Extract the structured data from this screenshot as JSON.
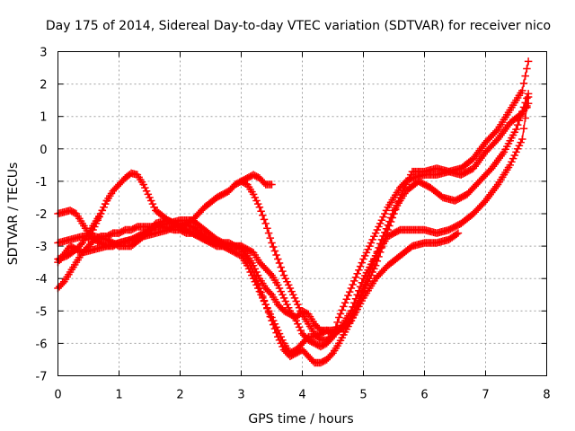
{
  "chart_data": {
    "type": "line",
    "title": "Day 175 of 2014, Sidereal Day-to-day VTEC variation (SDTVAR) for receiver nico",
    "xlabel": "GPS time / hours",
    "ylabel": "SDTVAR / TECUs",
    "xlim": [
      0,
      8
    ],
    "ylim": [
      -7,
      3
    ],
    "xticks": [
      "0",
      "1",
      "2",
      "3",
      "4",
      "5",
      "6",
      "7",
      "8"
    ],
    "yticks": [
      "-7",
      "-6",
      "-5",
      "-4",
      "-3",
      "-2",
      "-1",
      "0",
      "1",
      "2",
      "3"
    ],
    "grid": true,
    "marker": "+",
    "color": "#ff0000",
    "series": [
      {
        "x": [
          0.0,
          0.1,
          0.2,
          0.3,
          0.4,
          0.5,
          0.6,
          0.7,
          0.8,
          0.9,
          1.0,
          1.1,
          1.2,
          1.3,
          1.5,
          1.7,
          1.9,
          2.0,
          2.1,
          2.2,
          2.4,
          2.6,
          2.8,
          3.0,
          3.2,
          3.3,
          3.4,
          3.5,
          3.6,
          3.7,
          3.8,
          3.9,
          4.0,
          4.1,
          4.2,
          4.3,
          4.4,
          4.5,
          4.6,
          4.8,
          5.0,
          5.2,
          5.4,
          5.6,
          5.7,
          5.8,
          6.0,
          6.2,
          6.4,
          6.6,
          6.8,
          7.0,
          7.2,
          7.4,
          7.6,
          7.7
        ],
        "y": [
          -4.3,
          -4.1,
          -3.8,
          -3.5,
          -3.2,
          -3.0,
          -2.8,
          -2.7,
          -2.7,
          -2.6,
          -2.6,
          -2.5,
          -2.5,
          -2.4,
          -2.4,
          -2.4,
          -2.5,
          -2.5,
          -2.6,
          -2.6,
          -2.8,
          -3.0,
          -3.0,
          -3.0,
          -3.2,
          -3.5,
          -3.7,
          -3.9,
          -4.2,
          -4.6,
          -5.0,
          -5.3,
          -5.7,
          -5.9,
          -6.0,
          -6.1,
          -6.0,
          -5.8,
          -5.2,
          -4.3,
          -3.4,
          -2.6,
          -1.8,
          -1.2,
          -1.0,
          -0.9,
          -0.8,
          -0.8,
          -0.7,
          -0.6,
          -0.3,
          0.2,
          0.6,
          1.2,
          1.8,
          2.7
        ]
      },
      {
        "x": [
          0.0,
          0.1,
          0.2,
          0.3,
          0.4,
          0.5,
          0.6,
          0.7,
          0.8,
          0.9,
          1.0,
          1.2,
          1.4,
          1.6,
          1.8,
          2.0,
          2.2,
          2.4,
          2.6,
          2.8,
          3.0,
          3.1,
          3.2,
          3.3,
          3.4,
          3.5,
          3.6,
          3.7,
          3.8,
          3.9,
          4.0,
          4.1,
          4.2,
          4.3,
          4.4,
          4.5,
          4.7,
          4.9,
          5.1,
          5.3,
          5.5,
          5.7,
          5.9,
          6.1,
          6.3,
          6.5,
          6.7,
          6.9,
          7.1,
          7.3,
          7.5,
          7.7
        ],
        "y": [
          -2.0,
          -1.95,
          -1.9,
          -2.0,
          -2.3,
          -2.6,
          -2.8,
          -2.9,
          -3.0,
          -3.0,
          -2.9,
          -2.8,
          -2.7,
          -2.6,
          -2.5,
          -2.3,
          -2.4,
          -2.7,
          -2.9,
          -3.1,
          -3.3,
          -3.6,
          -4.0,
          -4.4,
          -4.8,
          -5.2,
          -5.6,
          -6.0,
          -6.3,
          -6.2,
          -6.0,
          -5.8,
          -5.8,
          -5.7,
          -5.6,
          -5.6,
          -5.5,
          -4.8,
          -3.8,
          -2.8,
          -1.9,
          -1.3,
          -1.0,
          -1.2,
          -1.5,
          -1.6,
          -1.4,
          -1.0,
          -0.6,
          -0.1,
          0.6,
          1.7
        ]
      },
      {
        "x": [
          0.0,
          0.15,
          0.3,
          0.4,
          0.5,
          0.6,
          0.7,
          0.8,
          0.9,
          1.0,
          1.1,
          1.2,
          1.3,
          1.4,
          1.5,
          1.6,
          1.8,
          2.0,
          2.2,
          2.4,
          2.6,
          2.8,
          2.9,
          3.0,
          3.1,
          3.2,
          3.3,
          3.4,
          3.5,
          3.6,
          3.7,
          3.8,
          3.9,
          4.0,
          4.1,
          4.2,
          4.3,
          4.4,
          4.6,
          4.8,
          5.0,
          5.2,
          5.4,
          5.6,
          5.8,
          6.0,
          6.2,
          6.4,
          6.6,
          6.8,
          7.0,
          7.2,
          7.4,
          7.6,
          7.7
        ],
        "y": [
          -3.4,
          -3.3,
          -3.1,
          -2.9,
          -2.6,
          -2.3,
          -2.0,
          -1.6,
          -1.3,
          -1.1,
          -0.9,
          -0.75,
          -0.8,
          -1.1,
          -1.5,
          -1.9,
          -2.2,
          -2.4,
          -2.2,
          -1.8,
          -1.5,
          -1.3,
          -1.1,
          -1.0,
          -1.1,
          -1.4,
          -1.8,
          -2.3,
          -2.9,
          -3.4,
          -3.9,
          -4.3,
          -4.7,
          -5.1,
          -5.4,
          -5.7,
          -5.9,
          -5.9,
          -5.6,
          -5.0,
          -4.0,
          -3.3,
          -2.7,
          -2.5,
          -2.5,
          -2.5,
          -2.6,
          -2.5,
          -2.3,
          -2.0,
          -1.6,
          -1.1,
          -0.5,
          0.3,
          1.6
        ]
      },
      {
        "x": [
          0.0,
          0.2,
          0.4,
          0.6,
          0.8,
          1.0,
          1.2,
          1.4,
          1.6,
          1.8,
          2.0,
          2.2,
          2.4,
          2.6,
          2.8,
          3.0,
          3.1,
          3.2,
          3.3,
          3.4,
          3.5,
          3.6,
          3.7,
          3.8,
          3.9,
          4.0,
          4.1,
          4.2,
          4.3,
          4.4,
          4.5,
          4.6,
          4.8,
          5.0,
          5.2,
          5.4,
          5.6,
          5.8,
          6.0,
          6.2,
          6.4,
          6.55
        ],
        "y": [
          -2.9,
          -2.8,
          -2.7,
          -2.7,
          -2.8,
          -3.0,
          -3.0,
          -2.7,
          -2.3,
          -2.2,
          -2.4,
          -2.6,
          -2.8,
          -2.9,
          -2.9,
          -3.1,
          -3.4,
          -3.8,
          -4.3,
          -4.8,
          -5.3,
          -5.8,
          -6.2,
          -6.4,
          -6.3,
          -6.2,
          -6.4,
          -6.6,
          -6.6,
          -6.5,
          -6.3,
          -6.0,
          -5.3,
          -4.6,
          -4.0,
          -3.6,
          -3.3,
          -3.0,
          -2.9,
          -2.9,
          -2.8,
          -2.6
        ]
      },
      {
        "x": [
          0.0,
          0.2,
          0.4,
          0.6,
          0.8,
          1.0,
          1.2,
          1.4,
          1.6,
          1.8,
          2.0,
          2.2,
          2.4,
          2.6,
          2.8,
          3.0,
          3.1,
          3.2,
          3.3,
          3.4,
          3.5,
          3.6,
          3.7,
          3.8,
          3.9,
          4.0,
          4.1,
          4.2,
          4.3,
          4.4,
          4.5,
          4.6,
          4.8,
          5.0,
          5.2,
          5.4,
          5.6,
          5.8,
          6.0,
          6.2,
          6.4,
          6.6,
          6.8,
          7.0,
          7.2,
          7.4,
          7.6,
          7.7
        ],
        "y": [
          -3.5,
          -3.0,
          -3.2,
          -3.1,
          -3.0,
          -2.9,
          -2.8,
          -2.6,
          -2.4,
          -2.3,
          -2.2,
          -2.2,
          -2.5,
          -2.8,
          -3.0,
          -3.0,
          -3.3,
          -3.6,
          -4.0,
          -4.3,
          -4.5,
          -4.8,
          -5.0,
          -5.1,
          -5.2,
          -5.0,
          -5.1,
          -5.4,
          -5.6,
          -5.6,
          -5.7,
          -5.6,
          -5.3,
          -4.4,
          -3.6,
          -2.5,
          -1.5,
          -0.7,
          -0.7,
          -0.6,
          -0.7,
          -0.8,
          -0.6,
          -0.1,
          0.3,
          0.8,
          1.1,
          1.4
        ]
      },
      {
        "x": [
          3.0,
          3.1,
          3.2,
          3.3,
          3.4,
          3.5
        ],
        "y": [
          -1.0,
          -0.9,
          -0.8,
          -0.9,
          -1.1,
          -1.1
        ]
      },
      {
        "x": [
          0.5,
          0.6,
          0.7,
          0.75,
          0.8
        ],
        "y": [
          -2.8,
          -2.4,
          -2.0,
          -1.8,
          -1.6
        ]
      }
    ]
  }
}
